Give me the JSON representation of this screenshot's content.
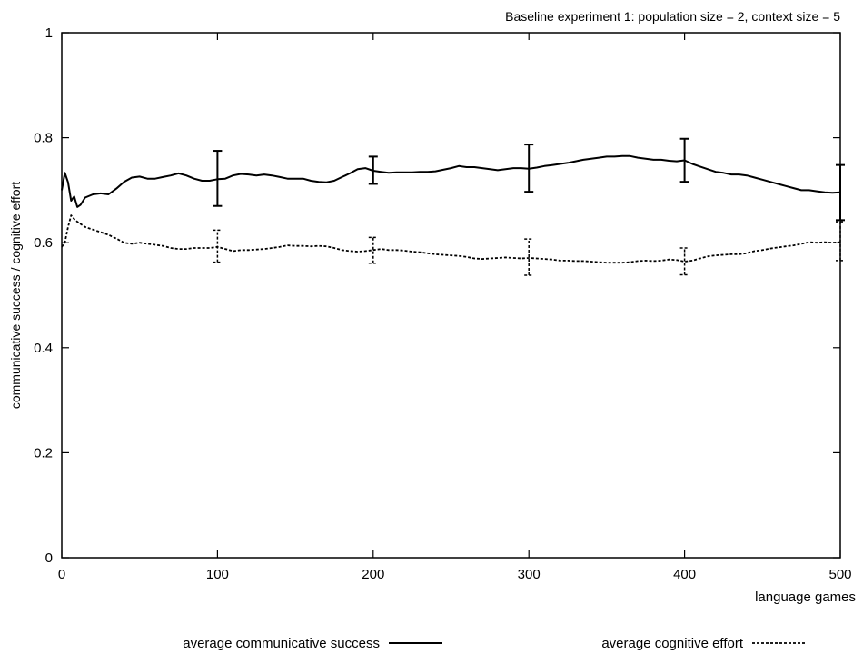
{
  "chart_data": {
    "type": "line",
    "title": "Baseline experiment 1: population size = 2, context size = 5",
    "xlabel": "language games",
    "ylabel": "communicative success / cognitive effort",
    "xlim": [
      0,
      500
    ],
    "ylim": [
      0,
      1
    ],
    "x_ticks": [
      0,
      100,
      200,
      300,
      400,
      500
    ],
    "y_ticks": [
      0,
      0.2,
      0.4,
      0.6,
      0.8,
      1
    ],
    "grid": false,
    "legend_position": "bottom",
    "series": [
      {
        "name": "average communicative success",
        "style": "solid",
        "points": [
          [
            0,
            0.7
          ],
          [
            2,
            0.733
          ],
          [
            4,
            0.715
          ],
          [
            6,
            0.68
          ],
          [
            8,
            0.688
          ],
          [
            10,
            0.668
          ],
          [
            12,
            0.672
          ],
          [
            15,
            0.686
          ],
          [
            20,
            0.692
          ],
          [
            25,
            0.694
          ],
          [
            30,
            0.692
          ],
          [
            35,
            0.703
          ],
          [
            40,
            0.716
          ],
          [
            45,
            0.724
          ],
          [
            50,
            0.726
          ],
          [
            55,
            0.722
          ],
          [
            60,
            0.722
          ],
          [
            65,
            0.725
          ],
          [
            70,
            0.728
          ],
          [
            75,
            0.732
          ],
          [
            80,
            0.728
          ],
          [
            85,
            0.722
          ],
          [
            90,
            0.718
          ],
          [
            95,
            0.718
          ],
          [
            100,
            0.721
          ],
          [
            105,
            0.722
          ],
          [
            110,
            0.728
          ],
          [
            115,
            0.731
          ],
          [
            120,
            0.73
          ],
          [
            125,
            0.728
          ],
          [
            130,
            0.73
          ],
          [
            135,
            0.728
          ],
          [
            140,
            0.725
          ],
          [
            145,
            0.722
          ],
          [
            150,
            0.722
          ],
          [
            155,
            0.722
          ],
          [
            160,
            0.718
          ],
          [
            165,
            0.716
          ],
          [
            170,
            0.715
          ],
          [
            175,
            0.718
          ],
          [
            180,
            0.725
          ],
          [
            185,
            0.732
          ],
          [
            190,
            0.74
          ],
          [
            195,
            0.742
          ],
          [
            200,
            0.737
          ],
          [
            205,
            0.735
          ],
          [
            210,
            0.733
          ],
          [
            215,
            0.734
          ],
          [
            220,
            0.734
          ],
          [
            225,
            0.734
          ],
          [
            230,
            0.735
          ],
          [
            235,
            0.735
          ],
          [
            240,
            0.736
          ],
          [
            245,
            0.739
          ],
          [
            250,
            0.742
          ],
          [
            255,
            0.746
          ],
          [
            260,
            0.744
          ],
          [
            265,
            0.744
          ],
          [
            270,
            0.742
          ],
          [
            275,
            0.74
          ],
          [
            280,
            0.738
          ],
          [
            285,
            0.74
          ],
          [
            290,
            0.742
          ],
          [
            295,
            0.742
          ],
          [
            300,
            0.741
          ],
          [
            305,
            0.743
          ],
          [
            310,
            0.746
          ],
          [
            315,
            0.748
          ],
          [
            320,
            0.75
          ],
          [
            325,
            0.752
          ],
          [
            330,
            0.755
          ],
          [
            335,
            0.758
          ],
          [
            340,
            0.76
          ],
          [
            345,
            0.762
          ],
          [
            350,
            0.764
          ],
          [
            355,
            0.764
          ],
          [
            360,
            0.765
          ],
          [
            365,
            0.765
          ],
          [
            370,
            0.762
          ],
          [
            375,
            0.76
          ],
          [
            380,
            0.758
          ],
          [
            385,
            0.758
          ],
          [
            390,
            0.756
          ],
          [
            395,
            0.755
          ],
          [
            400,
            0.757
          ],
          [
            405,
            0.75
          ],
          [
            410,
            0.745
          ],
          [
            415,
            0.74
          ],
          [
            420,
            0.735
          ],
          [
            425,
            0.733
          ],
          [
            430,
            0.73
          ],
          [
            435,
            0.73
          ],
          [
            440,
            0.728
          ],
          [
            445,
            0.724
          ],
          [
            450,
            0.72
          ],
          [
            455,
            0.716
          ],
          [
            460,
            0.712
          ],
          [
            465,
            0.708
          ],
          [
            470,
            0.704
          ],
          [
            475,
            0.7
          ],
          [
            480,
            0.7
          ],
          [
            485,
            0.698
          ],
          [
            490,
            0.696
          ],
          [
            495,
            0.695
          ],
          [
            500,
            0.696
          ]
        ],
        "error_bars": [
          {
            "x": 100,
            "low": 0.67,
            "high": 0.775
          },
          {
            "x": 200,
            "low": 0.712,
            "high": 0.764
          },
          {
            "x": 300,
            "low": 0.697,
            "high": 0.787
          },
          {
            "x": 400,
            "low": 0.716,
            "high": 0.798
          },
          {
            "x": 500,
            "low": 0.643,
            "high": 0.748
          }
        ]
      },
      {
        "name": "average cognitive effort",
        "style": "dashed",
        "points": [
          [
            0,
            0.592
          ],
          [
            2,
            0.6
          ],
          [
            4,
            0.63
          ],
          [
            6,
            0.652
          ],
          [
            8,
            0.645
          ],
          [
            10,
            0.64
          ],
          [
            15,
            0.63
          ],
          [
            20,
            0.625
          ],
          [
            25,
            0.62
          ],
          [
            30,
            0.615
          ],
          [
            35,
            0.608
          ],
          [
            40,
            0.6
          ],
          [
            45,
            0.598
          ],
          [
            50,
            0.6
          ],
          [
            55,
            0.598
          ],
          [
            60,
            0.596
          ],
          [
            65,
            0.594
          ],
          [
            70,
            0.59
          ],
          [
            75,
            0.588
          ],
          [
            80,
            0.588
          ],
          [
            85,
            0.59
          ],
          [
            90,
            0.59
          ],
          [
            95,
            0.59
          ],
          [
            100,
            0.592
          ],
          [
            105,
            0.588
          ],
          [
            110,
            0.584
          ],
          [
            115,
            0.586
          ],
          [
            120,
            0.586
          ],
          [
            125,
            0.587
          ],
          [
            130,
            0.588
          ],
          [
            135,
            0.59
          ],
          [
            140,
            0.592
          ],
          [
            145,
            0.595
          ],
          [
            150,
            0.594
          ],
          [
            155,
            0.594
          ],
          [
            160,
            0.593
          ],
          [
            165,
            0.594
          ],
          [
            170,
            0.593
          ],
          [
            175,
            0.59
          ],
          [
            180,
            0.586
          ],
          [
            185,
            0.584
          ],
          [
            190,
            0.583
          ],
          [
            195,
            0.584
          ],
          [
            200,
            0.586
          ],
          [
            205,
            0.588
          ],
          [
            210,
            0.586
          ],
          [
            215,
            0.586
          ],
          [
            220,
            0.585
          ],
          [
            225,
            0.583
          ],
          [
            230,
            0.582
          ],
          [
            235,
            0.58
          ],
          [
            240,
            0.578
          ],
          [
            245,
            0.577
          ],
          [
            250,
            0.576
          ],
          [
            255,
            0.575
          ],
          [
            260,
            0.573
          ],
          [
            265,
            0.57
          ],
          [
            270,
            0.569
          ],
          [
            275,
            0.57
          ],
          [
            280,
            0.571
          ],
          [
            285,
            0.572
          ],
          [
            290,
            0.571
          ],
          [
            295,
            0.57
          ],
          [
            300,
            0.571
          ],
          [
            305,
            0.57
          ],
          [
            310,
            0.569
          ],
          [
            315,
            0.568
          ],
          [
            320,
            0.566
          ],
          [
            325,
            0.566
          ],
          [
            330,
            0.565
          ],
          [
            335,
            0.565
          ],
          [
            340,
            0.564
          ],
          [
            345,
            0.563
          ],
          [
            350,
            0.562
          ],
          [
            355,
            0.562
          ],
          [
            360,
            0.562
          ],
          [
            365,
            0.563
          ],
          [
            370,
            0.565
          ],
          [
            375,
            0.566
          ],
          [
            380,
            0.565
          ],
          [
            385,
            0.566
          ],
          [
            390,
            0.568
          ],
          [
            395,
            0.567
          ],
          [
            400,
            0.564
          ],
          [
            405,
            0.566
          ],
          [
            410,
            0.57
          ],
          [
            415,
            0.574
          ],
          [
            420,
            0.576
          ],
          [
            425,
            0.577
          ],
          [
            430,
            0.578
          ],
          [
            435,
            0.578
          ],
          [
            440,
            0.58
          ],
          [
            445,
            0.584
          ],
          [
            450,
            0.586
          ],
          [
            455,
            0.589
          ],
          [
            460,
            0.591
          ],
          [
            465,
            0.593
          ],
          [
            470,
            0.595
          ],
          [
            475,
            0.598
          ],
          [
            480,
            0.601
          ],
          [
            485,
            0.6
          ],
          [
            490,
            0.601
          ],
          [
            495,
            0.6
          ],
          [
            500,
            0.601
          ]
        ],
        "error_bars": [
          {
            "x": 100,
            "low": 0.563,
            "high": 0.624
          },
          {
            "x": 200,
            "low": 0.561,
            "high": 0.61
          },
          {
            "x": 300,
            "low": 0.538,
            "high": 0.607
          },
          {
            "x": 400,
            "low": 0.539,
            "high": 0.59
          },
          {
            "x": 500,
            "low": 0.566,
            "high": 0.64
          }
        ]
      }
    ]
  }
}
